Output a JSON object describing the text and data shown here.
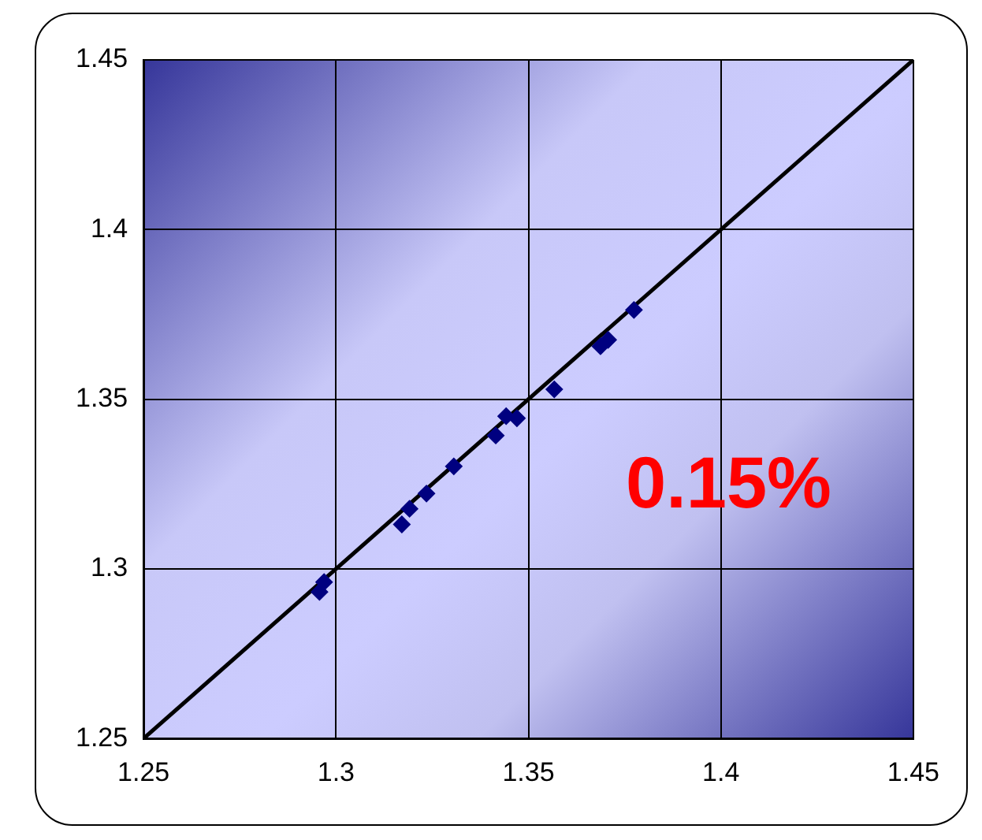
{
  "chart_data": {
    "type": "scatter",
    "xlim": [
      1.25,
      1.45
    ],
    "ylim": [
      1.25,
      1.45
    ],
    "xticks": [
      1.25,
      1.3,
      1.35,
      1.4,
      1.45
    ],
    "yticks": [
      1.25,
      1.3,
      1.35,
      1.4,
      1.45
    ],
    "grid": true,
    "legend": false,
    "marker": "diamond",
    "series": [
      {
        "type": "scatter",
        "color": "#000080",
        "x": [
          1.2957,
          1.2969,
          1.3171,
          1.3191,
          1.3235,
          1.3306,
          1.3415,
          1.3442,
          1.347,
          1.3567,
          1.3687,
          1.3707,
          1.3774
        ],
        "values": [
          1.2932,
          1.2961,
          1.3131,
          1.3177,
          1.3222,
          1.3302,
          1.3393,
          1.345,
          1.3444,
          1.3529,
          1.3656,
          1.3675,
          1.3763
        ]
      },
      {
        "type": "line",
        "color": "#000000",
        "line_style": "solid",
        "marker": "none",
        "x": [
          1.25,
          1.45
        ],
        "values": [
          1.25,
          1.45
        ]
      }
    ],
    "annotations": [
      "0.15%"
    ]
  }
}
